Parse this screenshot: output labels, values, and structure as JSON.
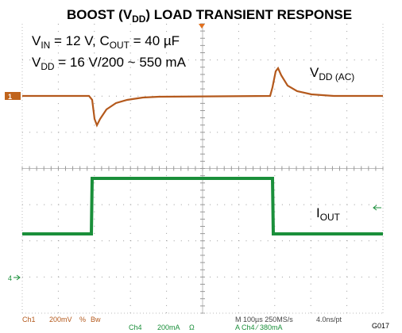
{
  "title": {
    "parts": [
      "BOOST (V",
      "DD",
      ") LOAD TRANSIENT RESPONSE"
    ]
  },
  "annotations": [
    {
      "parts": [
        "V",
        "IN",
        " = 12 V, C",
        "OUT",
        " = 40 µF"
      ]
    },
    {
      "parts": [
        "V",
        "DD",
        " = 16 V/200 ~ 550 mA"
      ]
    }
  ],
  "trace_labels": [
    {
      "parts": [
        "V",
        "DD (AC)"
      ]
    },
    {
      "parts": [
        "I",
        "OUT"
      ]
    }
  ],
  "markers": {
    "ch1": "1",
    "ch4": "4"
  },
  "status": {
    "ch1_name": "Ch1",
    "ch1_scale": "200mV",
    "ch1_coupling": "%",
    "ch1_bw": "Bw",
    "ch4_name": "Ch4",
    "ch4_scale": "200mA",
    "ch4_coupling": "Ω",
    "timebase": "M 100µs 250MS/s",
    "resolution": "4.0ns/pt",
    "trigger": "A Ch4 ⁄ 380mA",
    "figure_id": "G017"
  }
}
